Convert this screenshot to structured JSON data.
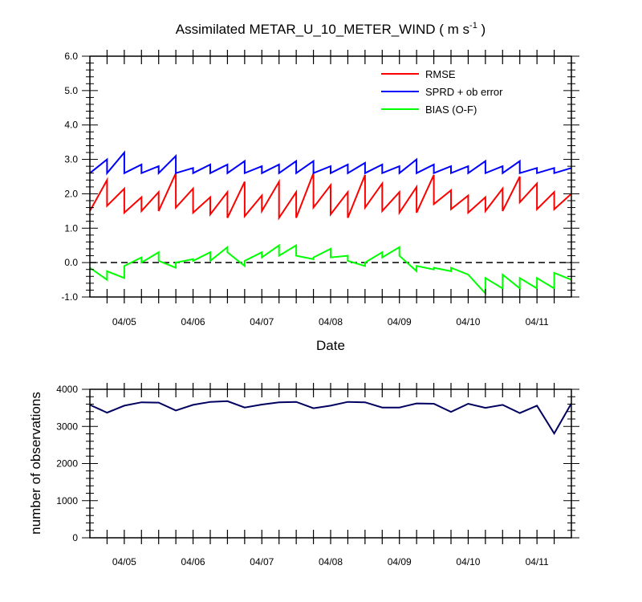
{
  "chart_data": [
    {
      "type": "line",
      "title": "Assimilated METAR_U_10_METER_WIND",
      "title_units_base": "( m s",
      "title_units_sup": "-1",
      "title_units_end": " )",
      "xlabel": "Date",
      "ylabel": "",
      "ylim": [
        -1.0,
        6.0
      ],
      "yticks": [
        "-1.0",
        "0.0",
        "1.0",
        "2.0",
        "3.0",
        "4.0",
        "5.0",
        "6.0"
      ],
      "xlim": [
        0,
        28
      ],
      "xtick_positions": [
        2,
        6,
        10,
        14,
        18,
        22,
        26
      ],
      "xticks": [
        "04/05",
        "04/06",
        "04/07",
        "04/08",
        "04/09",
        "04/10",
        "04/11"
      ],
      "zero_line": "dashed",
      "legend_position": "top-right",
      "series": [
        {
          "name": "RMSE",
          "color": "#ff0000",
          "x": [
            0,
            1,
            1,
            2,
            2,
            3,
            3,
            4,
            4,
            5,
            5,
            6,
            6,
            7,
            7,
            8,
            8,
            9,
            9,
            10,
            10,
            11,
            11,
            12,
            12,
            13,
            13,
            14,
            14,
            15,
            15,
            16,
            16,
            17,
            17,
            18,
            18,
            19,
            19,
            20,
            20,
            21,
            21,
            22,
            22,
            23,
            23,
            24,
            24,
            25,
            25,
            26,
            26,
            27,
            27,
            28
          ],
          "y": [
            1.5,
            2.4,
            1.65,
            2.15,
            1.45,
            1.9,
            1.5,
            2.05,
            1.5,
            2.6,
            1.6,
            2.15,
            1.45,
            1.9,
            1.4,
            2.05,
            1.3,
            2.35,
            1.35,
            1.95,
            1.5,
            2.35,
            1.3,
            2.05,
            1.3,
            2.6,
            1.6,
            2.25,
            1.4,
            2.05,
            1.3,
            2.55,
            1.6,
            2.3,
            1.5,
            2.05,
            1.45,
            2.2,
            1.45,
            2.55,
            1.7,
            2.1,
            1.55,
            1.95,
            1.45,
            1.9,
            1.5,
            2.15,
            1.5,
            2.5,
            1.75,
            2.3,
            1.55,
            2.05,
            1.55,
            2.0
          ]
        },
        {
          "name": "SPRD + ob error",
          "color": "#0000ff",
          "x": [
            0,
            1,
            1,
            2,
            2,
            3,
            3,
            4,
            4,
            5,
            5,
            6,
            6,
            7,
            7,
            8,
            8,
            9,
            9,
            10,
            10,
            11,
            11,
            12,
            12,
            13,
            13,
            14,
            14,
            15,
            15,
            16,
            16,
            17,
            17,
            18,
            18,
            19,
            19,
            20,
            20,
            21,
            21,
            22,
            22,
            23,
            23,
            24,
            24,
            25,
            25,
            26,
            26,
            27,
            27,
            28
          ],
          "y": [
            2.6,
            3.0,
            2.6,
            3.2,
            2.6,
            2.85,
            2.6,
            2.8,
            2.6,
            3.1,
            2.6,
            2.75,
            2.6,
            2.85,
            2.6,
            2.85,
            2.6,
            2.95,
            2.6,
            2.8,
            2.6,
            2.85,
            2.6,
            2.95,
            2.6,
            2.95,
            2.6,
            2.8,
            2.6,
            2.85,
            2.6,
            2.9,
            2.6,
            2.85,
            2.6,
            2.8,
            2.6,
            3.0,
            2.6,
            2.85,
            2.6,
            2.8,
            2.6,
            2.8,
            2.6,
            2.95,
            2.6,
            2.8,
            2.6,
            2.95,
            2.6,
            2.75,
            2.6,
            2.75,
            2.6,
            2.75
          ]
        },
        {
          "name": "BIAS (O-F)",
          "color": "#00ff00",
          "x": [
            0,
            1,
            1,
            2,
            2,
            3,
            3,
            4,
            4,
            5,
            5,
            6,
            6,
            7,
            7,
            8,
            8,
            9,
            9,
            10,
            10,
            11,
            11,
            12,
            12,
            13,
            13,
            14,
            14,
            15,
            15,
            16,
            16,
            17,
            17,
            18,
            18,
            19,
            19,
            20,
            20,
            21,
            21,
            22,
            22,
            23,
            23,
            24,
            24,
            25,
            25,
            26,
            26,
            27,
            27,
            28
          ],
          "y": [
            -0.15,
            -0.5,
            -0.25,
            -0.45,
            -0.1,
            0.15,
            0.0,
            0.3,
            0.05,
            -0.15,
            0.0,
            0.1,
            0.05,
            0.3,
            0.05,
            0.45,
            0.3,
            -0.1,
            0.05,
            0.3,
            0.15,
            0.5,
            0.2,
            0.5,
            0.2,
            0.1,
            0.15,
            0.4,
            0.15,
            0.2,
            0.05,
            -0.1,
            0.0,
            0.3,
            0.15,
            0.45,
            0.2,
            -0.25,
            -0.1,
            -0.2,
            -0.15,
            -0.25,
            -0.15,
            -0.35,
            -0.35,
            -0.9,
            -0.45,
            -0.75,
            -0.35,
            -0.75,
            -0.45,
            -0.75,
            -0.45,
            -0.75,
            -0.3,
            -0.5
          ]
        }
      ]
    },
    {
      "type": "line",
      "title": "",
      "xlabel": "",
      "ylabel": "number of observations",
      "ylim": [
        0,
        4000
      ],
      "yticks": [
        "0",
        "1000",
        "2000",
        "3000",
        "4000"
      ],
      "xlim": [
        0,
        28
      ],
      "xtick_positions": [
        2,
        6,
        10,
        14,
        18,
        22,
        26
      ],
      "xticks": [
        "04/05",
        "04/06",
        "04/07",
        "04/08",
        "04/09",
        "04/10",
        "04/11"
      ],
      "series": [
        {
          "name": "",
          "color": "#000060",
          "x": [
            0,
            1,
            2,
            3,
            4,
            5,
            6,
            7,
            8,
            9,
            10,
            11,
            12,
            13,
            14,
            15,
            16,
            17,
            18,
            19,
            20,
            21,
            22,
            23,
            24,
            25,
            26,
            27,
            28
          ],
          "y": [
            3580,
            3370,
            3560,
            3650,
            3640,
            3430,
            3580,
            3660,
            3680,
            3510,
            3590,
            3650,
            3660,
            3490,
            3560,
            3660,
            3650,
            3510,
            3510,
            3620,
            3610,
            3390,
            3610,
            3500,
            3580,
            3360,
            3560,
            2810,
            3620
          ]
        }
      ]
    }
  ]
}
